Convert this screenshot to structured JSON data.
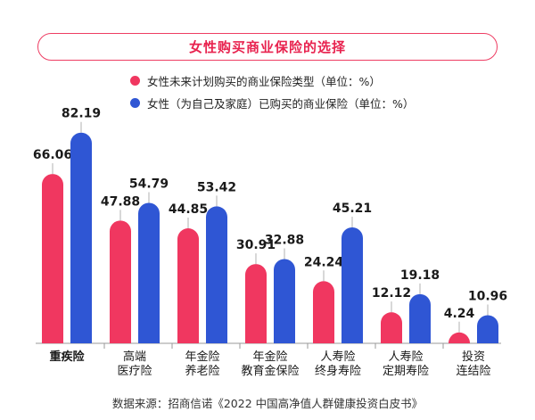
{
  "title": "女性购买商业保险的选择",
  "colors": {
    "red": "#f03760",
    "blue": "#2f56d4",
    "accent": "#ee3d63",
    "axis": "#9a9a9a"
  },
  "chart_data": {
    "type": "bar",
    "title": "女性购买商业保险的选择",
    "categories": [
      {
        "lines": [
          "重疾险"
        ],
        "bold": true
      },
      {
        "lines": [
          "高端",
          "医疗险"
        ],
        "bold": false
      },
      {
        "lines": [
          "年金险",
          "养老险"
        ],
        "bold": false
      },
      {
        "lines": [
          "年金险",
          "教育金保险"
        ],
        "bold": false
      },
      {
        "lines": [
          "人寿险",
          "终身寿险"
        ],
        "bold": false
      },
      {
        "lines": [
          "人寿险",
          "定期寿险"
        ],
        "bold": false
      },
      {
        "lines": [
          "投资",
          "连结险"
        ],
        "bold": false
      }
    ],
    "series": [
      {
        "name": "女性未来计划购买的商业保险类型（单位：%）",
        "color": "#f03760",
        "values": [
          66.06,
          47.88,
          44.85,
          30.91,
          24.24,
          12.12,
          4.24
        ],
        "labels": [
          "66.06",
          "47.88",
          "44.85",
          "30.91",
          "24.24",
          "12.12",
          "4.24"
        ]
      },
      {
        "name": "女性（为自己及家庭）已购买的商业保险（单位：%）",
        "color": "#2f56d4",
        "values": [
          82.19,
          54.79,
          53.42,
          32.88,
          45.21,
          19.18,
          10.96
        ],
        "labels": [
          "82.19",
          "54.79",
          "53.42",
          "32.88",
          "45.21",
          "19.18",
          "10.96"
        ]
      }
    ],
    "ylim": [
      0,
      100
    ],
    "grid": false,
    "legend": "top-left"
  },
  "source": "数据来源：招商信诺《2022 中国高净值人群健康投资白皮书》"
}
